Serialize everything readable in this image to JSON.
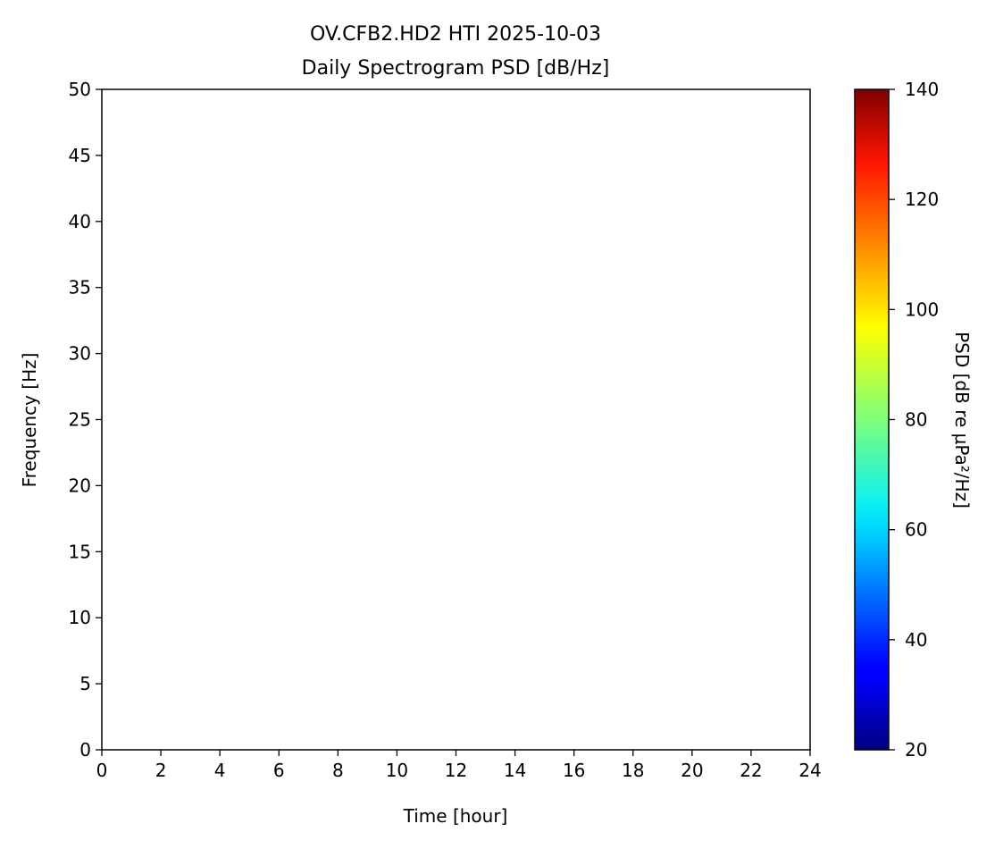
{
  "chart_data": {
    "type": "heatmap",
    "title": "OV.CFB2.HD2 HTI 2025-10-03",
    "subtitle": "Daily Spectrogram PSD [dB/Hz]",
    "xlabel": "Time [hour]",
    "ylabel": "Frequency [Hz]",
    "xlim": [
      0,
      24
    ],
    "ylim": [
      0,
      50
    ],
    "xticks": [
      0,
      2,
      4,
      6,
      8,
      10,
      12,
      14,
      16,
      18,
      20,
      22,
      24
    ],
    "yticks": [
      0,
      5,
      10,
      15,
      20,
      25,
      30,
      35,
      40,
      45,
      50
    ],
    "values": [],
    "grid": false,
    "colorbar": {
      "label": "PSD [dB re μPa²/Hz]",
      "colormap": "jet",
      "range": [
        20,
        140
      ],
      "ticks": [
        20,
        40,
        60,
        80,
        100,
        120,
        140
      ]
    }
  }
}
